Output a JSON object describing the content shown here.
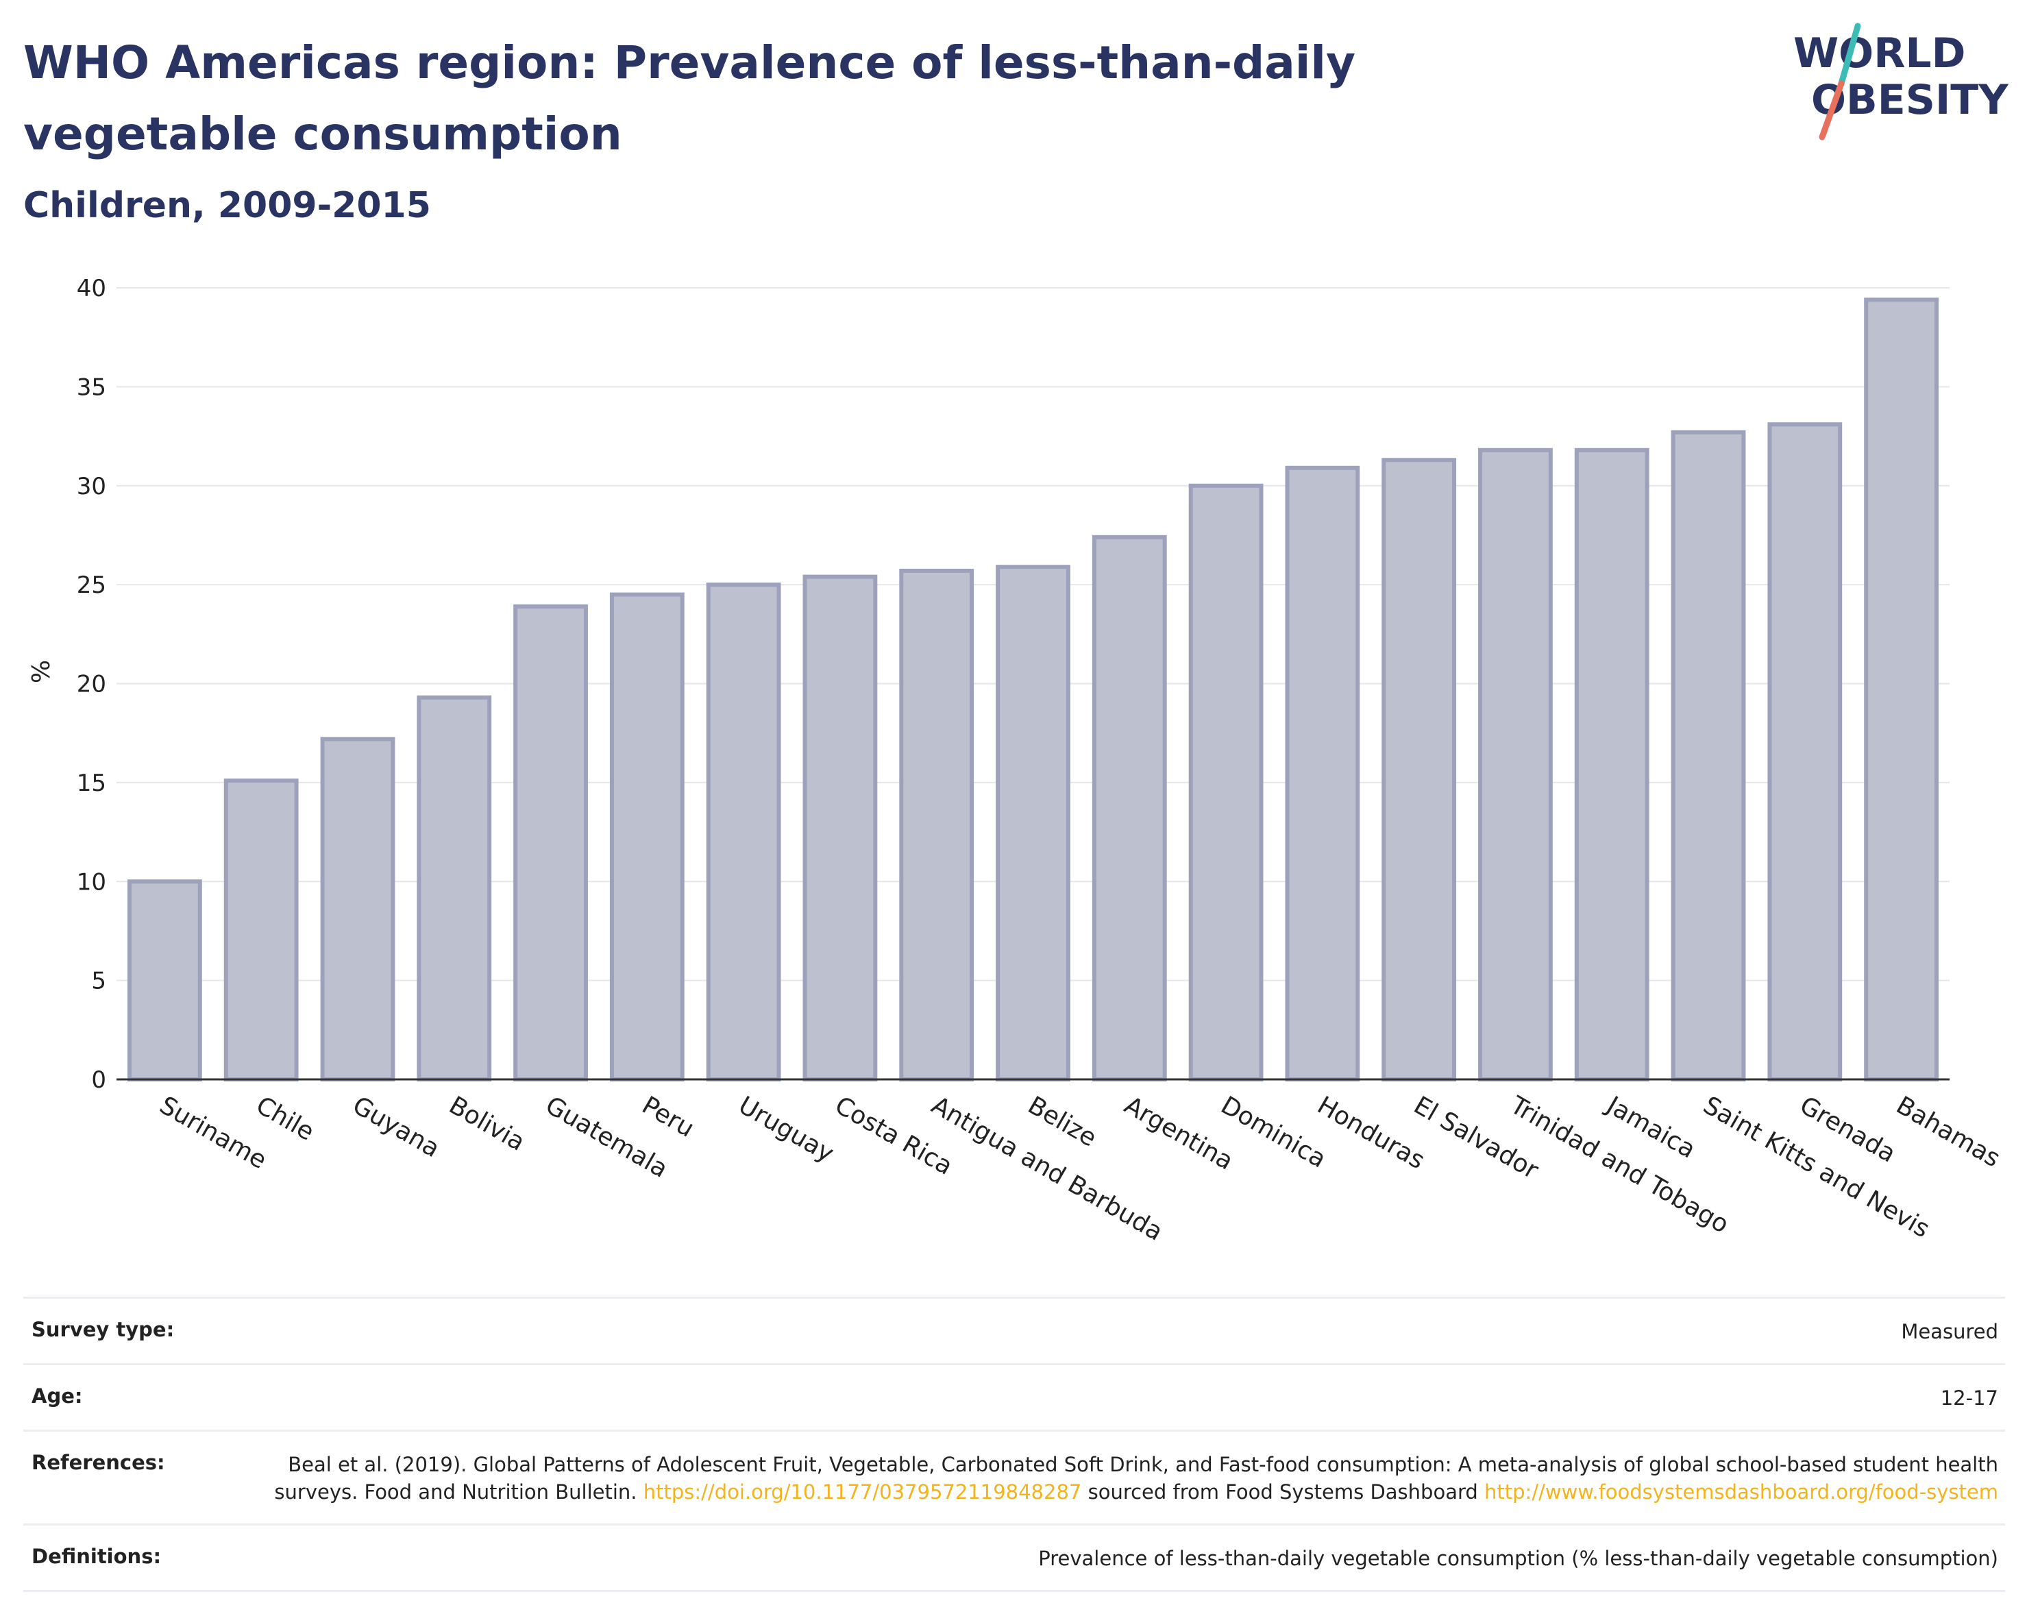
{
  "header": {
    "title": "WHO Americas region: Prevalence of less-than-daily vegetable consumption",
    "subtitle": "Children, 2009-2015",
    "logo_line1": "WORLD",
    "logo_line2": "OBESITY"
  },
  "chart_data": {
    "type": "bar",
    "title": "WHO Americas region: Prevalence of less-than-daily vegetable consumption",
    "subtitle": "Children, 2009-2015",
    "ylabel": "%",
    "xlabel": "",
    "ylim": [
      0,
      40
    ],
    "yticks": [
      0,
      5,
      10,
      15,
      20,
      25,
      30,
      35,
      40
    ],
    "grid": true,
    "categories": [
      "Suriname",
      "Chile",
      "Guyana",
      "Bolivia",
      "Guatemala",
      "Peru",
      "Uruguay",
      "Costa Rica",
      "Antigua and Barbuda",
      "Belize",
      "Argentina",
      "Dominica",
      "Honduras",
      "El Salvador",
      "Trinidad and Tobago",
      "Jamaica",
      "Saint Kitts and Nevis",
      "Grenada",
      "Bahamas"
    ],
    "values": [
      10.0,
      15.1,
      17.2,
      19.3,
      23.9,
      24.5,
      25.0,
      25.4,
      25.7,
      25.9,
      27.4,
      30.0,
      30.9,
      31.3,
      31.8,
      31.8,
      32.7,
      33.1,
      39.4
    ],
    "colors": {
      "bar_fill": "#bdc0cf",
      "bar_stroke": "#9da1bb",
      "axis": "#333333",
      "grid": "#e6e6ec"
    }
  },
  "meta": {
    "survey_type_label": "Survey type:",
    "survey_type_value": "Measured",
    "age_label": "Age:",
    "age_value": "12-17",
    "references_label": "References:",
    "references_text_1": "Beal et al. (2019). Global Patterns of Adolescent Fruit, Vegetable, Carbonated Soft Drink, and Fast-food consumption: A meta-analysis of global school-based student health surveys. Food and Nutrition Bulletin.",
    "references_link_1": "https://doi.org/10.1177/0379572119848287",
    "references_text_2": "sourced from Food Systems Dashboard",
    "references_link_2": "http://www.foodsystemsdashboard.org/food-system",
    "definitions_label": "Definitions:",
    "definitions_value": "Prevalence of less-than-daily vegetable consumption (% less-than-daily vegetable consumption)"
  }
}
